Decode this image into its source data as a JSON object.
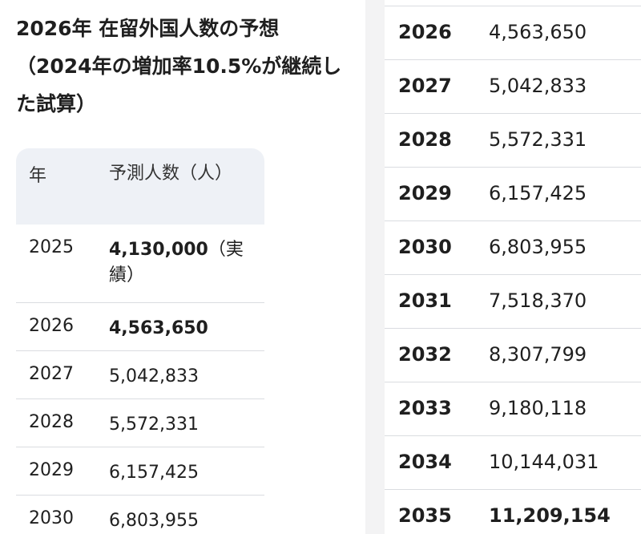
{
  "left": {
    "title": [
      "2026年 在留外国人数の予想",
      "（2024年の増加率10.5%が継続した試算）"
    ],
    "table": {
      "header": [
        "年",
        "予測人数（人）"
      ],
      "rows": [
        [
          "2025",
          "4,130,000",
          "（実績）"
        ],
        [
          "2026",
          "4,563,650"
        ],
        [
          "2027",
          "5,042,833"
        ],
        [
          "2028",
          "5,572,331"
        ],
        [
          "2029",
          "6,157,425"
        ],
        [
          "2030",
          "6,803,955"
        ]
      ]
    }
  },
  "right": {
    "table": {
      "rows": [
        [
          "2026",
          "4,563,650"
        ],
        [
          "2027",
          "5,042,833"
        ],
        [
          "2028",
          "5,572,331"
        ],
        [
          "2029",
          "6,157,425"
        ],
        [
          "2030",
          "6,803,955"
        ],
        [
          "2031",
          "7,518,370"
        ],
        [
          "2032",
          "8,307,799"
        ],
        [
          "2033",
          "9,180,118"
        ],
        [
          "2034",
          "10,144,031"
        ],
        [
          "2035",
          "11,209,154"
        ]
      ]
    }
  }
}
